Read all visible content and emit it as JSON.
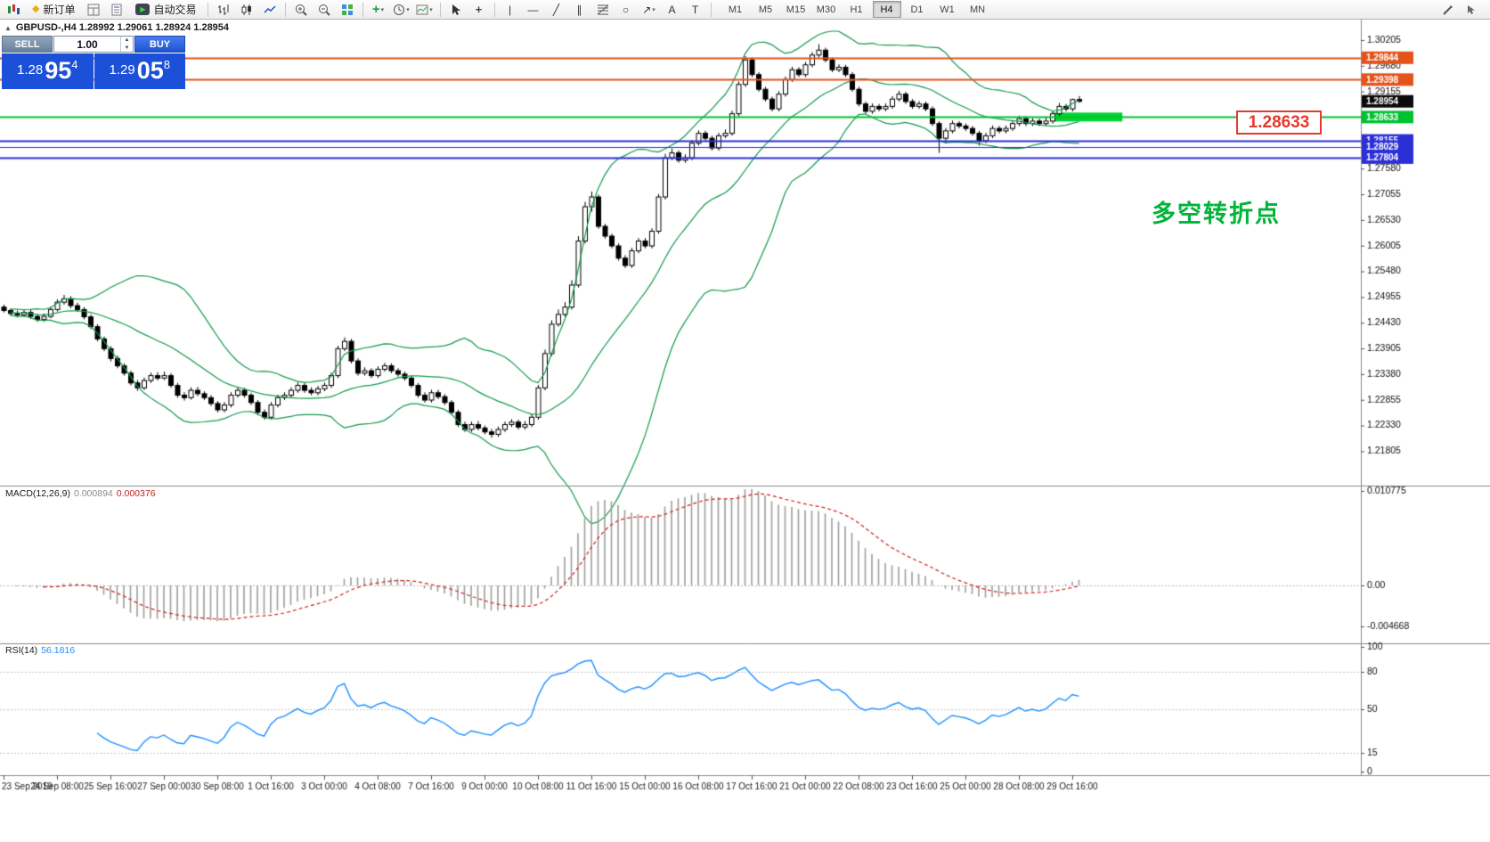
{
  "toolbar": {
    "new_order_label": "新订单",
    "autotrading_label": "自动交易",
    "timeframes": [
      "M1",
      "M5",
      "M15",
      "M30",
      "H1",
      "H4",
      "D1",
      "W1",
      "MN"
    ],
    "active_timeframe": "H4"
  },
  "icon_glyphs": {
    "collapse": "▲",
    "new_order": "◆",
    "autotrading_play": "▶",
    "indicators_plus": "+",
    "crosshair": "+",
    "vertical_line": "|",
    "horizontal_line": "—",
    "trendline": "╱",
    "channel": "∥",
    "shapes": "○",
    "arrows": "↗",
    "text": "A",
    "text_label": "T",
    "caret": "▾",
    "spin_up": "▲",
    "spin_down": "▼"
  },
  "chart": {
    "symbol_title": "GBPUSD-,H4 1.28992 1.29061 1.28924 1.28954",
    "annotation": "多空转折点",
    "callout_price": "1.28633"
  },
  "trade_panel": {
    "sell_label": "SELL",
    "buy_label": "BUY",
    "volume": "1.00",
    "sell_price": {
      "head": "1.28",
      "big": "95",
      "sup": "4"
    },
    "buy_price": {
      "head": "1.29",
      "big": "05",
      "sup": "8"
    }
  },
  "indicators": {
    "macd": {
      "label": "MACD(12,26,9)",
      "value_main": "0.000894",
      "value_signal": "0.000376",
      "scale_labels": [
        "0.010775",
        "0.00",
        "-0.004668"
      ]
    },
    "rsi": {
      "label": "RSI(14)",
      "value": "56.1816",
      "scale_labels": [
        "100",
        "80",
        "50",
        "15",
        "0"
      ],
      "levels": [
        80,
        50,
        15
      ]
    }
  },
  "chart_data": {
    "type": "candlestick",
    "symbol": "GBPUSD",
    "period": "H4",
    "x_labels": [
      "23 Sep 2019",
      "24 Sep 08:00",
      "25 Sep 16:00",
      "27 Sep 00:00",
      "30 Sep 08:00",
      "1 Oct 16:00",
      "3 Oct 00:00",
      "4 Oct 08:00",
      "7 Oct 16:00",
      "9 Oct 00:00",
      "10 Oct 08:00",
      "11 Oct 16:00",
      "15 Oct 00:00",
      "16 Oct 08:00",
      "17 Oct 16:00",
      "21 Oct 00:00",
      "22 Oct 08:00",
      "23 Oct 16:00",
      "25 Oct 00:00",
      "28 Oct 08:00",
      "29 Oct 16:00"
    ],
    "y_axis_ticks": [
      1.30205,
      1.2968,
      1.29155,
      1.2863,
      1.28105,
      1.2758,
      1.27055,
      1.2653,
      1.26005,
      1.2548,
      1.24955,
      1.2443,
      1.23905,
      1.2338,
      1.22855,
      1.2233,
      1.21805
    ],
    "price_levels": [
      {
        "price": 1.29844,
        "label": "1.29844",
        "color": "#e4531b",
        "line_width": 2
      },
      {
        "price": 1.29398,
        "label": "1.29398",
        "color": "#e4531b",
        "line_width": 2
      },
      {
        "price": 1.28954,
        "label": "1.28954",
        "color": "#0a0a0a",
        "line_width": 0
      },
      {
        "price": 1.28633,
        "label": "1.28633",
        "color": "#00c230",
        "line_width": 2
      },
      {
        "price": 1.28155,
        "label": "1.28155",
        "color": "#2b2fd6",
        "line_width": 2
      },
      {
        "price": 1.28029,
        "label": "1.28029",
        "color": "#2b2fd6",
        "line_width": 1
      },
      {
        "price": 1.27804,
        "label": "1.27804",
        "color": "#2b2fd6",
        "line_width": 2
      }
    ],
    "highlight": {
      "price": 1.28633,
      "bar_start": 157,
      "bar_end": 167.5,
      "thickness_px": 10,
      "color": "#00d434"
    },
    "bollinger": {
      "period": 20,
      "deviation": 2,
      "color": "#129a4c"
    },
    "macd": {
      "fast": 12,
      "slow": 26,
      "signal": 9,
      "axis_max": 0.010775,
      "axis_min": -0.004668
    },
    "rsi": {
      "period": 14,
      "last": 56.1816
    },
    "candles": [
      [
        1.2475,
        1.248,
        1.2464,
        1.2468
      ],
      [
        1.2468,
        1.2472,
        1.2457,
        1.2462
      ],
      [
        1.2462,
        1.2468,
        1.2454,
        1.2459
      ],
      [
        1.2459,
        1.247,
        1.2455,
        1.2464
      ],
      [
        1.2464,
        1.2469,
        1.2451,
        1.2456
      ],
      [
        1.2456,
        1.2461,
        1.2445,
        1.245
      ],
      [
        1.245,
        1.2462,
        1.2445,
        1.2456
      ],
      [
        1.2456,
        1.2476,
        1.2452,
        1.247
      ],
      [
        1.247,
        1.2491,
        1.2466,
        1.2485
      ],
      [
        1.2485,
        1.25,
        1.248,
        1.2492
      ],
      [
        1.2492,
        1.2497,
        1.2473,
        1.2478
      ],
      [
        1.2478,
        1.2484,
        1.2465,
        1.247
      ],
      [
        1.247,
        1.2475,
        1.245,
        1.2455
      ],
      [
        1.2455,
        1.246,
        1.243,
        1.2435
      ],
      [
        1.2435,
        1.244,
        1.2405,
        1.241
      ],
      [
        1.241,
        1.2415,
        1.2385,
        1.239
      ],
      [
        1.239,
        1.2395,
        1.2364,
        1.237
      ],
      [
        1.237,
        1.2376,
        1.235,
        1.2355
      ],
      [
        1.2355,
        1.236,
        1.2335,
        1.234
      ],
      [
        1.234,
        1.2345,
        1.2315,
        1.232
      ],
      [
        1.232,
        1.2326,
        1.2304,
        1.231
      ],
      [
        1.231,
        1.2331,
        1.2306,
        1.2325
      ],
      [
        1.2325,
        1.2341,
        1.232,
        1.2335
      ],
      [
        1.2335,
        1.2342,
        1.2325,
        1.233
      ],
      [
        1.233,
        1.2343,
        1.2326,
        1.2335
      ],
      [
        1.2335,
        1.234,
        1.231,
        1.2315
      ],
      [
        1.2315,
        1.232,
        1.229,
        1.2295
      ],
      [
        1.2295,
        1.2301,
        1.2284,
        1.229
      ],
      [
        1.229,
        1.2311,
        1.2286,
        1.2305
      ],
      [
        1.2305,
        1.2312,
        1.2293,
        1.2298
      ],
      [
        1.2298,
        1.2303,
        1.2285,
        1.229
      ],
      [
        1.229,
        1.2295,
        1.2273,
        1.2278
      ],
      [
        1.2278,
        1.2283,
        1.226,
        1.2265
      ],
      [
        1.2265,
        1.2281,
        1.226,
        1.2275
      ],
      [
        1.2275,
        1.2301,
        1.227,
        1.2295
      ],
      [
        1.2295,
        1.2311,
        1.229,
        1.2305
      ],
      [
        1.2305,
        1.231,
        1.229,
        1.2295
      ],
      [
        1.2295,
        1.23,
        1.2275,
        1.228
      ],
      [
        1.228,
        1.2285,
        1.2254,
        1.226
      ],
      [
        1.226,
        1.2266,
        1.2245,
        1.225
      ],
      [
        1.225,
        1.2281,
        1.2246,
        1.2275
      ],
      [
        1.2275,
        1.2296,
        1.227,
        1.229
      ],
      [
        1.229,
        1.2301,
        1.2285,
        1.2295
      ],
      [
        1.2295,
        1.2311,
        1.229,
        1.2305
      ],
      [
        1.2305,
        1.2321,
        1.23,
        1.2315
      ],
      [
        1.2315,
        1.232,
        1.23,
        1.2305
      ],
      [
        1.2305,
        1.2311,
        1.2295,
        1.23
      ],
      [
        1.23,
        1.2314,
        1.2295,
        1.2308
      ],
      [
        1.2308,
        1.2321,
        1.2303,
        1.2315
      ],
      [
        1.2315,
        1.2341,
        1.231,
        1.2335
      ],
      [
        1.2335,
        1.2396,
        1.233,
        1.239
      ],
      [
        1.239,
        1.2413,
        1.2385,
        1.2405
      ],
      [
        1.2405,
        1.241,
        1.236,
        1.2365
      ],
      [
        1.2365,
        1.237,
        1.2335,
        1.234
      ],
      [
        1.234,
        1.2352,
        1.2335,
        1.2345
      ],
      [
        1.2345,
        1.235,
        1.233,
        1.2335
      ],
      [
        1.2335,
        1.2354,
        1.233,
        1.2348
      ],
      [
        1.2348,
        1.2361,
        1.2343,
        1.2355
      ],
      [
        1.2355,
        1.236,
        1.234,
        1.2345
      ],
      [
        1.2345,
        1.235,
        1.2333,
        1.2338
      ],
      [
        1.2338,
        1.2343,
        1.2325,
        1.233
      ],
      [
        1.233,
        1.2335,
        1.231,
        1.2315
      ],
      [
        1.2315,
        1.232,
        1.229,
        1.2295
      ],
      [
        1.2295,
        1.2301,
        1.228,
        1.2285
      ],
      [
        1.2285,
        1.2306,
        1.228,
        1.23
      ],
      [
        1.23,
        1.2306,
        1.2287,
        1.2292
      ],
      [
        1.2292,
        1.2297,
        1.2275,
        1.228
      ],
      [
        1.228,
        1.2285,
        1.2255,
        1.226
      ],
      [
        1.226,
        1.2265,
        1.223,
        1.2235
      ],
      [
        1.2235,
        1.2241,
        1.222,
        1.2225
      ],
      [
        1.2225,
        1.2241,
        1.222,
        1.2235
      ],
      [
        1.2235,
        1.2242,
        1.2223,
        1.2228
      ],
      [
        1.2228,
        1.2233,
        1.2215,
        1.222
      ],
      [
        1.222,
        1.2226,
        1.2208,
        1.2215
      ],
      [
        1.2215,
        1.2231,
        1.221,
        1.2225
      ],
      [
        1.2225,
        1.2241,
        1.222,
        1.2235
      ],
      [
        1.2235,
        1.2246,
        1.223,
        1.224
      ],
      [
        1.224,
        1.2245,
        1.2225,
        1.223
      ],
      [
        1.223,
        1.2242,
        1.2225,
        1.2235
      ],
      [
        1.2235,
        1.2256,
        1.223,
        1.225
      ],
      [
        1.225,
        1.2316,
        1.2245,
        1.231
      ],
      [
        1.231,
        1.2388,
        1.2305,
        1.238
      ],
      [
        1.238,
        1.2448,
        1.2375,
        1.244
      ],
      [
        1.244,
        1.247,
        1.2435,
        1.246
      ],
      [
        1.246,
        1.2485,
        1.2455,
        1.2475
      ],
      [
        1.2475,
        1.253,
        1.247,
        1.252
      ],
      [
        1.252,
        1.262,
        1.2515,
        1.261
      ],
      [
        1.261,
        1.269,
        1.2605,
        1.268
      ],
      [
        1.268,
        1.2711,
        1.267,
        1.27
      ],
      [
        1.27,
        1.2705,
        1.2635,
        1.264
      ],
      [
        1.264,
        1.2645,
        1.2615,
        1.262
      ],
      [
        1.262,
        1.2625,
        1.2595,
        1.26
      ],
      [
        1.26,
        1.2605,
        1.257,
        1.2575
      ],
      [
        1.2575,
        1.2581,
        1.2555,
        1.256
      ],
      [
        1.256,
        1.2596,
        1.2555,
        1.259
      ],
      [
        1.259,
        1.2616,
        1.2585,
        1.261
      ],
      [
        1.261,
        1.2616,
        1.2595,
        1.26
      ],
      [
        1.26,
        1.2636,
        1.2595,
        1.263
      ],
      [
        1.263,
        1.2706,
        1.2625,
        1.27
      ],
      [
        1.27,
        1.2788,
        1.2695,
        1.278
      ],
      [
        1.278,
        1.2799,
        1.2775,
        1.279
      ],
      [
        1.279,
        1.2795,
        1.277,
        1.2775
      ],
      [
        1.2775,
        1.2787,
        1.277,
        1.278
      ],
      [
        1.278,
        1.2816,
        1.2775,
        1.281
      ],
      [
        1.281,
        1.2836,
        1.2805,
        1.283
      ],
      [
        1.283,
        1.2835,
        1.2815,
        1.282
      ],
      [
        1.282,
        1.2825,
        1.2795,
        1.28
      ],
      [
        1.28,
        1.2831,
        1.2795,
        1.2825
      ],
      [
        1.2825,
        1.2838,
        1.282,
        1.283
      ],
      [
        1.283,
        1.2876,
        1.2825,
        1.287
      ],
      [
        1.287,
        1.2936,
        1.2865,
        1.293
      ],
      [
        1.293,
        1.2988,
        1.2925,
        1.298
      ],
      [
        1.298,
        1.2985,
        1.2945,
        1.295
      ],
      [
        1.295,
        1.2955,
        1.2915,
        1.292
      ],
      [
        1.292,
        1.2925,
        1.2895,
        1.29
      ],
      [
        1.29,
        1.2905,
        1.2875,
        1.288
      ],
      [
        1.288,
        1.2916,
        1.2875,
        1.291
      ],
      [
        1.291,
        1.2946,
        1.2905,
        1.294
      ],
      [
        1.294,
        1.2966,
        1.2935,
        1.296
      ],
      [
        1.296,
        1.2965,
        1.2945,
        1.295
      ],
      [
        1.295,
        1.2976,
        1.2945,
        1.297
      ],
      [
        1.297,
        1.2996,
        1.2965,
        1.299
      ],
      [
        1.299,
        1.3012,
        1.2985,
        1.3
      ],
      [
        1.3,
        1.3005,
        1.2975,
        1.298
      ],
      [
        1.298,
        1.2985,
        1.2955,
        1.296
      ],
      [
        1.296,
        1.2971,
        1.2955,
        1.2965
      ],
      [
        1.2965,
        1.297,
        1.2945,
        1.295
      ],
      [
        1.295,
        1.2955,
        1.2915,
        1.292
      ],
      [
        1.292,
        1.2925,
        1.2885,
        1.289
      ],
      [
        1.289,
        1.2895,
        1.287,
        1.2875
      ],
      [
        1.2875,
        1.2891,
        1.287,
        1.2885
      ],
      [
        1.2885,
        1.289,
        1.2875,
        1.288
      ],
      [
        1.288,
        1.2891,
        1.2875,
        1.2885
      ],
      [
        1.2885,
        1.2906,
        1.288,
        1.29
      ],
      [
        1.29,
        1.2917,
        1.2895,
        1.291
      ],
      [
        1.291,
        1.2915,
        1.289,
        1.2895
      ],
      [
        1.2895,
        1.29,
        1.288,
        1.2885
      ],
      [
        1.2885,
        1.2896,
        1.288,
        1.289
      ],
      [
        1.289,
        1.2895,
        1.2875,
        1.288
      ],
      [
        1.288,
        1.2885,
        1.2845,
        1.285
      ],
      [
        1.285,
        1.2855,
        1.279,
        1.282
      ],
      [
        1.282,
        1.2841,
        1.281,
        1.2835
      ],
      [
        1.2835,
        1.2856,
        1.283,
        1.285
      ],
      [
        1.285,
        1.2855,
        1.284,
        1.2845
      ],
      [
        1.2845,
        1.285,
        1.2835,
        1.284
      ],
      [
        1.284,
        1.2845,
        1.2825,
        1.283
      ],
      [
        1.283,
        1.2835,
        1.2805,
        1.2815
      ],
      [
        1.2815,
        1.2831,
        1.281,
        1.2825
      ],
      [
        1.2825,
        1.2846,
        1.282,
        1.284
      ],
      [
        1.284,
        1.2845,
        1.283,
        1.2835
      ],
      [
        1.2835,
        1.2846,
        1.283,
        1.284
      ],
      [
        1.284,
        1.2856,
        1.2835,
        1.285
      ],
      [
        1.285,
        1.2866,
        1.2845,
        1.286
      ],
      [
        1.286,
        1.2865,
        1.2845,
        1.285
      ],
      [
        1.285,
        1.2861,
        1.2845,
        1.2855
      ],
      [
        1.2855,
        1.286,
        1.2845,
        1.285
      ],
      [
        1.285,
        1.2862,
        1.2845,
        1.2855
      ],
      [
        1.2855,
        1.2876,
        1.285,
        1.287
      ],
      [
        1.287,
        1.2892,
        1.2865,
        1.2885
      ],
      [
        1.2885,
        1.289,
        1.2875,
        1.288
      ],
      [
        1.288,
        1.2901,
        1.2875,
        1.2899
      ],
      [
        1.28992,
        1.29061,
        1.28924,
        1.28954
      ]
    ]
  }
}
